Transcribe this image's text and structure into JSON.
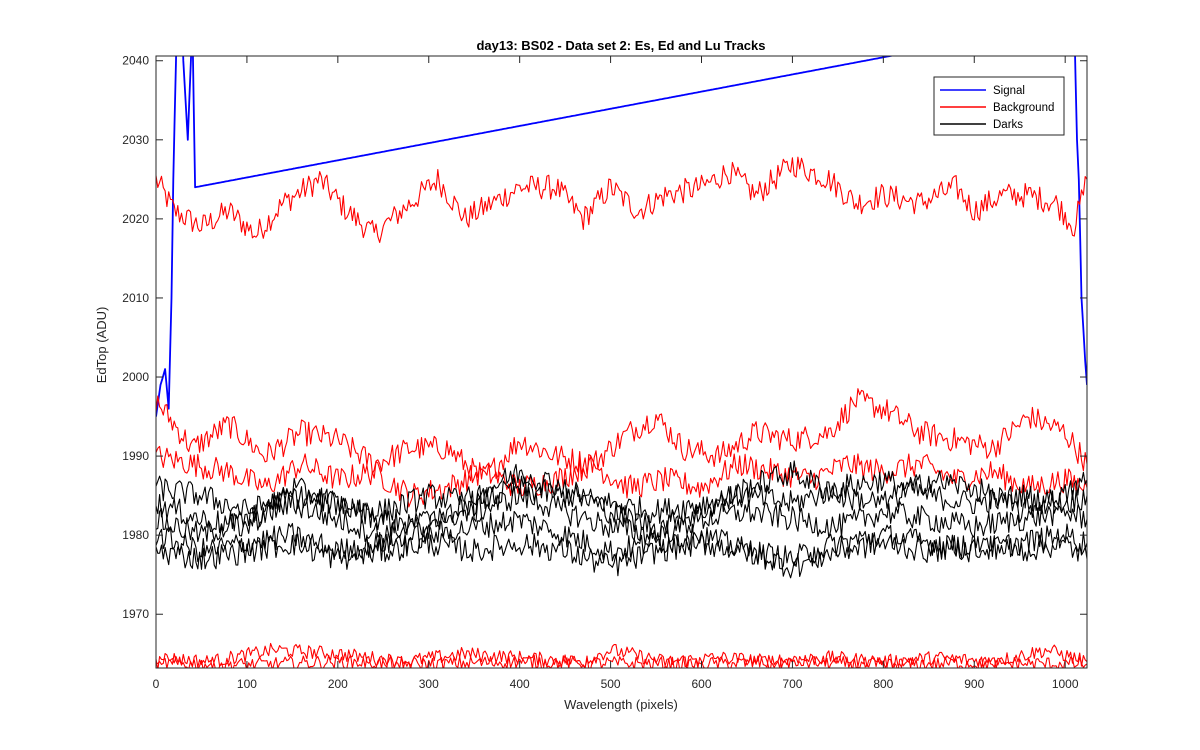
{
  "chart_data": {
    "type": "line",
    "title": "day13: BS02 - Data set 2: Es, Ed and Lu Tracks",
    "xlabel": "Wavelength (pixels)",
    "ylabel": "EdTop (ADU)",
    "xlim": [
      0,
      1024
    ],
    "ylim": [
      1963.2,
      2040.6
    ],
    "xticks": [
      0,
      100,
      200,
      300,
      400,
      500,
      600,
      700,
      800,
      900,
      1000
    ],
    "yticks": [
      1970,
      1980,
      1990,
      2000,
      2010,
      2020,
      2030,
      2040
    ],
    "grid": false,
    "legend_position": "top-right",
    "series": [
      {
        "name": "Signal",
        "color": "#0000ff",
        "points": [
          [
            0,
            1995
          ],
          [
            5,
            1999
          ],
          [
            10,
            2001
          ],
          [
            14,
            1996
          ],
          [
            17,
            2010
          ],
          [
            19,
            2025
          ],
          [
            22,
            2040
          ],
          [
            25,
            2060
          ],
          [
            30,
            2040
          ],
          [
            35,
            2030
          ],
          [
            40,
            2045
          ],
          [
            43,
            2024
          ],
          [
            1010,
            2045
          ],
          [
            1013,
            2030
          ],
          [
            1015,
            2025
          ],
          [
            1018,
            2010
          ],
          [
            1020,
            2006
          ],
          [
            1022,
            2002
          ],
          [
            1024,
            1999
          ]
        ]
      },
      {
        "name": "Background",
        "color": "#ff0000",
        "points": [
          [
            0,
            2025
          ],
          [
            20,
            2021
          ],
          [
            50,
            2019
          ],
          [
            80,
            2021
          ],
          [
            110,
            2018
          ],
          [
            140,
            2022
          ],
          [
            180,
            2025
          ],
          [
            210,
            2021
          ],
          [
            240,
            2018
          ],
          [
            270,
            2021
          ],
          [
            310,
            2025
          ],
          [
            340,
            2020
          ],
          [
            370,
            2022
          ],
          [
            400,
            2024
          ],
          [
            440,
            2024
          ],
          [
            470,
            2020
          ],
          [
            500,
            2024
          ],
          [
            530,
            2021
          ],
          [
            560,
            2023
          ],
          [
            600,
            2024
          ],
          [
            630,
            2026
          ],
          [
            660,
            2023
          ],
          [
            700,
            2027
          ],
          [
            740,
            2025
          ],
          [
            770,
            2022
          ],
          [
            800,
            2023
          ],
          [
            840,
            2022
          ],
          [
            880,
            2024
          ],
          [
            900,
            2021
          ],
          [
            930,
            2023
          ],
          [
            960,
            2023
          ],
          [
            990,
            2022
          ],
          [
            1010,
            2019
          ],
          [
            1024,
            2025
          ]
        ]
      },
      {
        "name": "",
        "color": "#ff0000",
        "points": [
          [
            0,
            1997
          ],
          [
            40,
            1991
          ],
          [
            80,
            1994
          ],
          [
            120,
            1990
          ],
          [
            160,
            1993
          ],
          [
            200,
            1992
          ],
          [
            240,
            1989
          ],
          [
            280,
            1991
          ],
          [
            320,
            1991
          ],
          [
            360,
            1987
          ],
          [
            400,
            1992
          ],
          [
            440,
            1990
          ],
          [
            480,
            1989
          ],
          [
            520,
            1993
          ],
          [
            550,
            1995
          ],
          [
            580,
            1991
          ],
          [
            620,
            1990
          ],
          [
            660,
            1993
          ],
          [
            700,
            1992
          ],
          [
            740,
            1993
          ],
          [
            770,
            1997
          ],
          [
            800,
            1996
          ],
          [
            840,
            1993
          ],
          [
            880,
            1992
          ],
          [
            920,
            1991
          ],
          [
            960,
            1995
          ],
          [
            1000,
            1993
          ],
          [
            1024,
            1989
          ]
        ]
      },
      {
        "name": "",
        "color": "#ff0000",
        "points": [
          [
            0,
            1990
          ],
          [
            40,
            1989
          ],
          [
            80,
            1988
          ],
          [
            120,
            1986
          ],
          [
            160,
            1989
          ],
          [
            200,
            1987
          ],
          [
            240,
            1988
          ],
          [
            280,
            1985
          ],
          [
            320,
            1986
          ],
          [
            360,
            1988
          ],
          [
            400,
            1986
          ],
          [
            440,
            1987
          ],
          [
            480,
            1989
          ],
          [
            520,
            1986
          ],
          [
            560,
            1987
          ],
          [
            600,
            1986
          ],
          [
            640,
            1989
          ],
          [
            680,
            1988
          ],
          [
            720,
            1987
          ],
          [
            760,
            1989
          ],
          [
            800,
            1988
          ],
          [
            840,
            1989
          ],
          [
            880,
            1987
          ],
          [
            920,
            1988
          ],
          [
            960,
            1986
          ],
          [
            1000,
            1987
          ],
          [
            1024,
            1986
          ]
        ]
      },
      {
        "name": "",
        "color": "#ff0000",
        "points": [
          [
            0,
            1964.5
          ],
          [
            60,
            1964
          ],
          [
            130,
            1965.5
          ],
          [
            200,
            1965
          ],
          [
            270,
            1964
          ],
          [
            340,
            1965
          ],
          [
            400,
            1964.5
          ],
          [
            470,
            1964
          ],
          [
            500,
            1965.5
          ],
          [
            560,
            1964
          ],
          [
            620,
            1964.5
          ],
          [
            680,
            1964
          ],
          [
            740,
            1964.5
          ],
          [
            800,
            1964
          ],
          [
            860,
            1964.5
          ],
          [
            920,
            1964
          ],
          [
            980,
            1965.5
          ],
          [
            1024,
            1964
          ]
        ]
      },
      {
        "name": "",
        "color": "#ff0000",
        "points": [
          [
            0,
            1963.8
          ],
          [
            100,
            1963.6
          ],
          [
            200,
            1964
          ],
          [
            300,
            1963.7
          ],
          [
            400,
            1964
          ],
          [
            500,
            1963.8
          ],
          [
            600,
            1963.7
          ],
          [
            700,
            1964
          ],
          [
            800,
            1963.6
          ],
          [
            900,
            1963.8
          ],
          [
            1024,
            1963.7
          ]
        ]
      },
      {
        "name": "Darks",
        "color": "#000000",
        "points": [
          [
            0,
            1986
          ],
          [
            50,
            1985
          ],
          [
            100,
            1983
          ],
          [
            150,
            1985
          ],
          [
            200,
            1984
          ],
          [
            250,
            1983
          ],
          [
            300,
            1985
          ],
          [
            350,
            1984
          ],
          [
            400,
            1986
          ],
          [
            450,
            1985
          ],
          [
            500,
            1984
          ],
          [
            550,
            1983
          ],
          [
            600,
            1984
          ],
          [
            650,
            1985
          ],
          [
            700,
            1984
          ],
          [
            750,
            1986
          ],
          [
            800,
            1987
          ],
          [
            850,
            1985
          ],
          [
            900,
            1984
          ],
          [
            950,
            1985
          ],
          [
            1000,
            1984
          ],
          [
            1024,
            1985
          ]
        ]
      },
      {
        "name": "",
        "color": "#000000",
        "points": [
          [
            0,
            1982
          ],
          [
            50,
            1980
          ],
          [
            100,
            1982
          ],
          [
            150,
            1984
          ],
          [
            200,
            1982
          ],
          [
            250,
            1980
          ],
          [
            300,
            1982
          ],
          [
            350,
            1983
          ],
          [
            400,
            1985
          ],
          [
            450,
            1983
          ],
          [
            500,
            1981
          ],
          [
            550,
            1980
          ],
          [
            600,
            1982
          ],
          [
            650,
            1983
          ],
          [
            700,
            1982
          ],
          [
            750,
            1981
          ],
          [
            800,
            1983
          ],
          [
            850,
            1982
          ],
          [
            900,
            1981
          ],
          [
            950,
            1982
          ],
          [
            1000,
            1983
          ],
          [
            1024,
            1982
          ]
        ]
      },
      {
        "name": "",
        "color": "#000000",
        "points": [
          [
            0,
            1980
          ],
          [
            50,
            1978
          ],
          [
            100,
            1979
          ],
          [
            150,
            1980
          ],
          [
            200,
            1978
          ],
          [
            250,
            1979
          ],
          [
            300,
            1980
          ],
          [
            350,
            1981
          ],
          [
            400,
            1982
          ],
          [
            450,
            1980
          ],
          [
            500,
            1978
          ],
          [
            550,
            1979
          ],
          [
            600,
            1980
          ],
          [
            650,
            1978
          ],
          [
            700,
            1977
          ],
          [
            750,
            1979
          ],
          [
            800,
            1980
          ],
          [
            850,
            1979
          ],
          [
            900,
            1978
          ],
          [
            950,
            1979
          ],
          [
            1000,
            1980
          ],
          [
            1024,
            1979
          ]
        ]
      },
      {
        "name": "",
        "color": "#000000",
        "points": [
          [
            0,
            1984
          ],
          [
            50,
            1982
          ],
          [
            100,
            1981
          ],
          [
            150,
            1986
          ],
          [
            200,
            1984
          ],
          [
            250,
            1982
          ],
          [
            300,
            1981
          ],
          [
            350,
            1985
          ],
          [
            400,
            1988
          ],
          [
            450,
            1986
          ],
          [
            500,
            1983
          ],
          [
            550,
            1981
          ],
          [
            600,
            1983
          ],
          [
            650,
            1986
          ],
          [
            700,
            1988
          ],
          [
            750,
            1985
          ],
          [
            800,
            1984
          ],
          [
            850,
            1987
          ],
          [
            900,
            1986
          ],
          [
            950,
            1983
          ],
          [
            1000,
            1985
          ],
          [
            1024,
            1987
          ]
        ]
      },
      {
        "name": "",
        "color": "#000000",
        "points": [
          [
            0,
            1978
          ],
          [
            50,
            1977
          ],
          [
            100,
            1978
          ],
          [
            150,
            1979
          ],
          [
            200,
            1977
          ],
          [
            250,
            1978
          ],
          [
            300,
            1979
          ],
          [
            350,
            1978
          ],
          [
            400,
            1979
          ],
          [
            450,
            1978
          ],
          [
            500,
            1976
          ],
          [
            550,
            1978
          ],
          [
            600,
            1979
          ],
          [
            650,
            1978
          ],
          [
            700,
            1976
          ],
          [
            750,
            1978
          ],
          [
            800,
            1979
          ],
          [
            850,
            1978
          ],
          [
            900,
            1979
          ],
          [
            950,
            1978
          ],
          [
            1000,
            1979
          ],
          [
            1024,
            1977
          ]
        ]
      }
    ]
  }
}
